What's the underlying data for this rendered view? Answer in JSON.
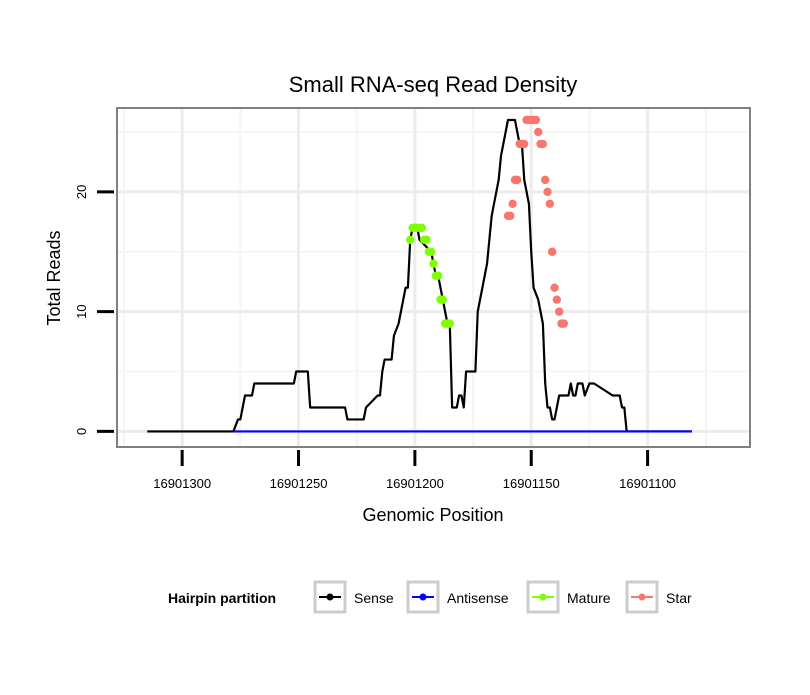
{
  "chart_data": {
    "type": "line",
    "title": "Small RNA-seq Read Density",
    "xlabel": "Genomic Position",
    "ylabel": "Total Reads",
    "xlim": [
      16901328,
      16901056
    ],
    "ylim": [
      -1.3,
      27
    ],
    "x_reversed": true,
    "xticks": [
      16901300,
      16901250,
      16901200,
      16901150,
      16901100
    ],
    "xtick_labels": [
      "16901300",
      "16901250",
      "16901200",
      "16901150",
      "16901100"
    ],
    "yticks": [
      0,
      10,
      20
    ],
    "ytick_labels": [
      "0",
      "10",
      "20"
    ],
    "grid": true,
    "legend": {
      "title": "Hairpin partition",
      "position": "bottom",
      "entries": [
        "Sense",
        "Antisense",
        "Mature",
        "Star"
      ]
    },
    "colors": {
      "Sense": "#000000",
      "Antisense": "#0000ff",
      "Mature": "#7fff00",
      "Star": "#f8766d"
    },
    "series": [
      {
        "name": "Sense",
        "kind": "line",
        "x": [
          16901315,
          16901278,
          16901276,
          16901275,
          16901273,
          16901270,
          16901269,
          16901266,
          16901265,
          16901252,
          16901251,
          16901246,
          16901245,
          16901230,
          16901229,
          16901222,
          16901221,
          16901216,
          16901215,
          16901214,
          16901213,
          16901212,
          16901211,
          16901210,
          16901209,
          16901207,
          16901206,
          16901205,
          16901204,
          16901203,
          16901202,
          16901201,
          16901200,
          16901199,
          16901198,
          16901193,
          16901192,
          16901191,
          16901190,
          16901189,
          16901188,
          16901187,
          16901186,
          16901185,
          16901184,
          16901183,
          16901182,
          16901181,
          16901180,
          16901179,
          16901178,
          16901174,
          16901173,
          16901169,
          16901168,
          16901167,
          16901166,
          16901164,
          16901163,
          16901162,
          16901160,
          16901159,
          16901158,
          16901157,
          16901156,
          16901155,
          16901154,
          16901153,
          16901152,
          16901151,
          16901150,
          16901149,
          16901147,
          16901146,
          16901145,
          16901144,
          16901143,
          16901142,
          16901141,
          16901140,
          16901139,
          16901138,
          16901137,
          16901136,
          16901135,
          16901134,
          16901133,
          16901132,
          16901131,
          16901130,
          16901128,
          16901127,
          16901125,
          16901124,
          16901123,
          16901115,
          16901114,
          16901113,
          16901112,
          16901111,
          16901110,
          16901109,
          16901107,
          16901106,
          16901105,
          16901104,
          16901103,
          16901102,
          16901101,
          16901097,
          16901096,
          16901087,
          16901086,
          16901084,
          16901083,
          16901081
        ],
        "y": [
          0,
          0,
          1,
          1,
          3,
          3,
          4,
          4,
          4,
          4,
          5,
          5,
          2,
          2,
          1,
          1,
          2,
          3,
          3,
          5,
          6,
          6,
          6,
          6,
          8,
          9,
          10,
          11,
          12,
          12,
          16,
          17,
          17,
          17,
          16,
          15,
          14,
          13,
          13,
          12,
          11,
          10,
          9,
          9,
          2,
          2,
          2,
          3,
          3,
          2,
          5,
          5,
          10,
          14,
          16,
          18,
          19,
          21,
          23,
          24,
          26,
          26,
          26,
          26,
          25,
          24,
          24,
          21,
          20,
          19,
          15,
          12,
          11,
          10,
          9,
          4,
          2,
          2,
          1,
          1,
          2,
          3,
          3,
          3,
          3,
          3,
          4,
          3,
          3,
          4,
          4,
          3,
          4,
          4,
          4,
          3,
          3,
          3,
          3,
          2,
          2,
          0,
          0,
          0,
          0,
          0,
          0,
          0,
          0,
          0,
          0,
          0,
          0,
          0,
          0,
          0
        ]
      },
      {
        "name": "Antisense",
        "kind": "line",
        "x": [
          16901278,
          16901081
        ],
        "y": [
          0,
          0
        ]
      },
      {
        "name": "Mature",
        "kind": "points",
        "x": [
          16901202,
          16901201,
          16901200,
          16901199,
          16901198,
          16901197,
          16901196,
          16901195,
          16901194,
          16901193,
          16901192,
          16901191,
          16901190,
          16901189,
          16901188,
          16901187,
          16901186,
          16901185
        ],
        "y": [
          16,
          17,
          17,
          17,
          17,
          17,
          16,
          16,
          15,
          15,
          14,
          13,
          13,
          11,
          11,
          9,
          9,
          9
        ]
      },
      {
        "name": "Star",
        "kind": "points",
        "x": [
          16901160,
          16901159,
          16901158,
          16901157,
          16901156,
          16901155,
          16901154,
          16901153,
          16901152,
          16901151,
          16901150,
          16901149,
          16901148,
          16901147,
          16901146,
          16901145,
          16901144,
          16901143,
          16901142,
          16901141,
          16901140,
          16901139,
          16901138,
          16901137,
          16901136
        ],
        "y": [
          18,
          18,
          19,
          21,
          21,
          24,
          24,
          24,
          26,
          26,
          26,
          26,
          26,
          25,
          24,
          24,
          21,
          20,
          19,
          15,
          12,
          11,
          10,
          9,
          9
        ]
      }
    ]
  }
}
